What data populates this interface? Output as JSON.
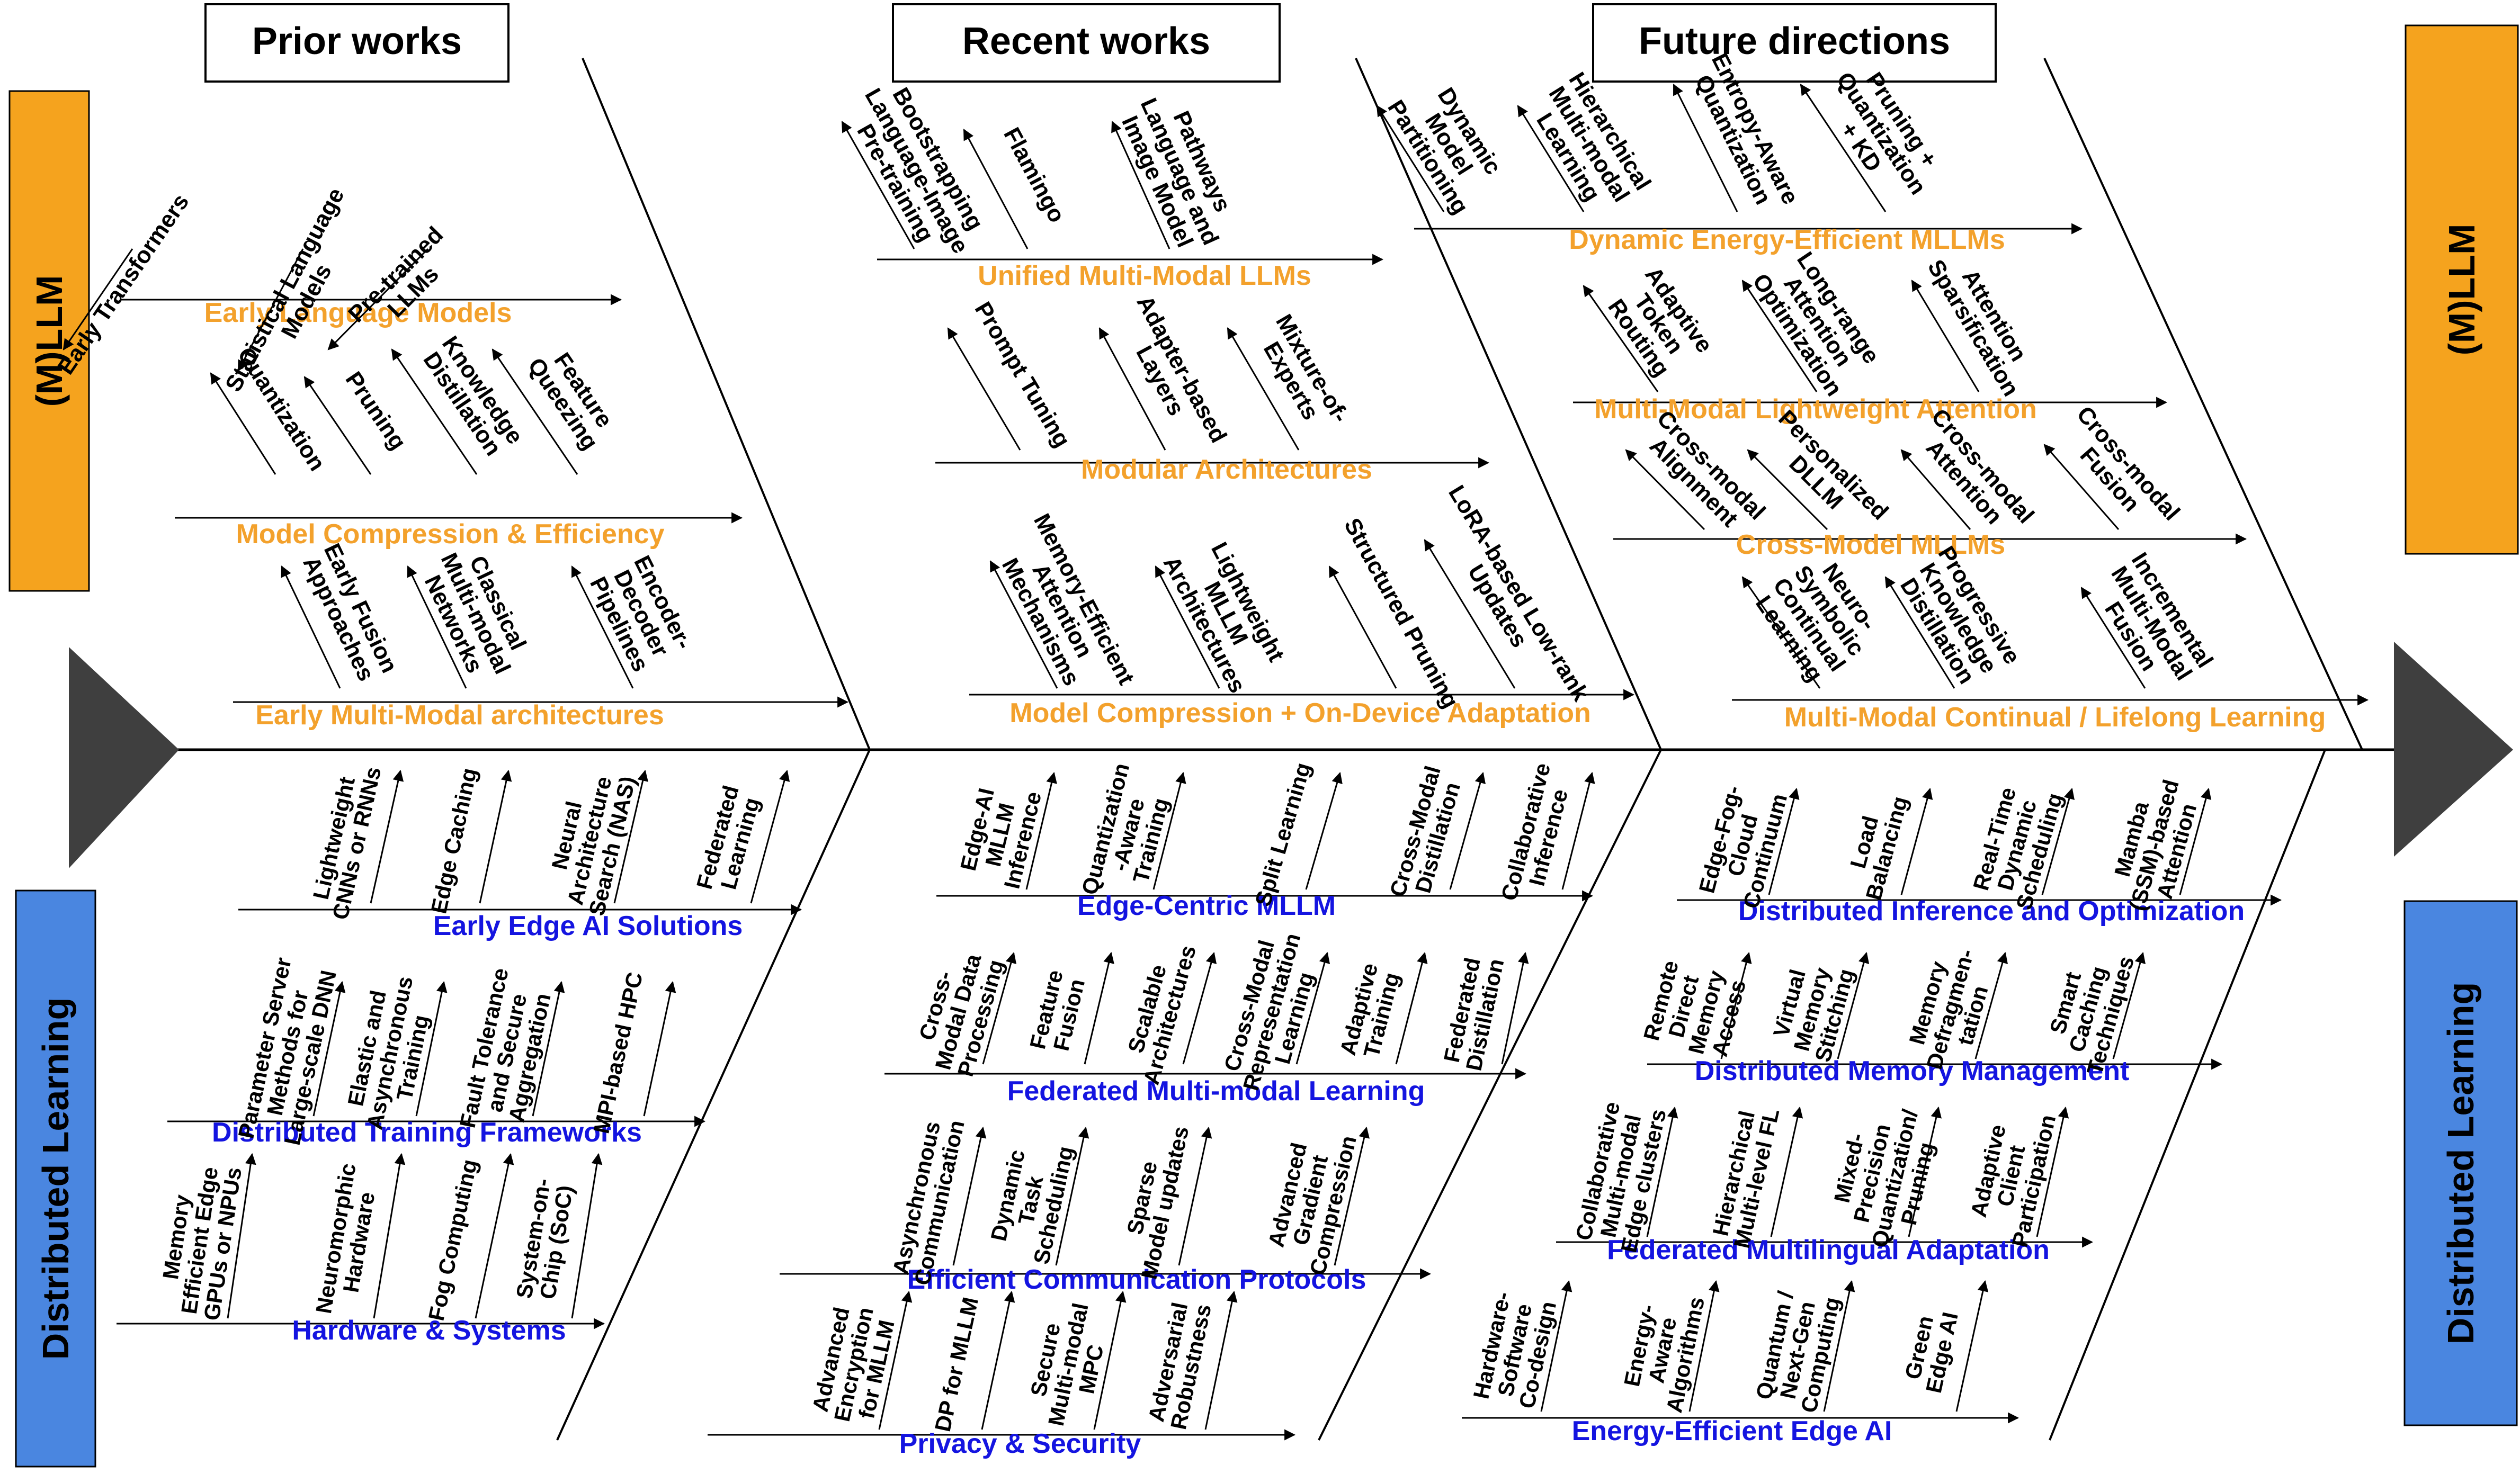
{
  "colors": {
    "orange": "#F5A31E",
    "orange_text": "#F3A12C",
    "blue": "#4A86E0",
    "blue_text": "#1414E0",
    "dark": "#3F3F3F",
    "line": "#000000"
  },
  "headers": {
    "prior": "Prior works",
    "recent": "Recent works",
    "future": "Future directions"
  },
  "side_labels": {
    "mllm": "(M)LLM",
    "distributed": "Distributed Learning"
  },
  "top_branches": [
    {
      "title": "Early Language Models",
      "items": [
        "Early Transformers",
        "Statistical Language\nModels",
        "Pre-trained\nLLMs"
      ]
    },
    {
      "title": "Model Compression & Efficiency",
      "items": [
        "Quantization",
        "Pruning",
        "Knowledge\nDistillation",
        "Feature\nQueezing"
      ]
    },
    {
      "title": "Early  Multi-Modal architectures",
      "items": [
        "Early Fusion\nApproaches",
        "Classical\nMulti-modal\nNetworks",
        "Encoder-\nDecoder\nPipelines"
      ]
    },
    {
      "title": "Unified Multi-Modal LLMs",
      "items": [
        "Bootstrapping\nLanguage-Image\nPre-training",
        "Flamingo",
        "Pathways\nLanguage and\nImage Model"
      ]
    },
    {
      "title": "Modular Architectures",
      "items": [
        "Prompt Tuning",
        "Adapter-based\nLayers",
        "Mixture-of-\nExperts"
      ]
    },
    {
      "title": "Model Compression + On-Device Adaptation",
      "items": [
        "Memory-Efficient\nAttention\nMechanisms",
        "Lightweight\nMLLM\nArchitectures",
        "Structured Pruning",
        "LoRA-based Low-rank\nUpdates"
      ]
    },
    {
      "title": "Dynamic Energy-Efficient MLLMs",
      "items": [
        "Dynamic\nModel\nPartitioning",
        "Hierarchical\nMulti-modal\nLearning",
        "Entropy-Aware\nQuantization",
        "Pruning +\nQuantization\n+ KD"
      ]
    },
    {
      "title": "Multi-Modal Lightweight Attention",
      "items": [
        "Adaptive\nToken\nRouting",
        "Long-range\nAttention\nOptimization",
        "Attention\nSparsification"
      ]
    },
    {
      "title": "Cross-Model MLLMs",
      "items": [
        "Cross-modal\nAlignment",
        "Personalized\nDLLM",
        "Cross-modal\nAttention",
        "Cross-modal\nFusion"
      ]
    },
    {
      "title": "Multi-Modal Continual / Lifelong Learning",
      "items": [
        "Neuro-\nSymbolic\nContinual\nLearning",
        "Progressive\nKnowledge\nDistillation",
        "Incremental\nMulti-Modal\nFusion"
      ]
    }
  ],
  "bottom_branches": [
    {
      "title": "Early Edge AI Solutions",
      "items": [
        "Lightweight\nCNNs or RNNs",
        "Edge Caching",
        "Neural\nArchitecture\nSearch (NAS)",
        "Federated\nLearning"
      ]
    },
    {
      "title": "Distributed Training Frameworks",
      "items": [
        "Parameter Server\nMethods for\nLarge-scale DNN",
        "Elastic and\nAsynchronous\nTraining",
        "Fault Tolerance\nand Secure\nAggregation",
        "MPI-based HPC"
      ]
    },
    {
      "title": "Hardware & Systems",
      "items": [
        "Memory\nEfficient Edge\nGPUs or NPUs",
        "Neuromorphic\nHardware",
        "Fog Computing",
        "System-on-\nChip (SoC)"
      ]
    },
    {
      "title": "Edge-Centric MLLM",
      "items": [
        "Edge-AI\nMLLM\nInference",
        "Quantization\n-Aware\nTraining",
        "Split Learning",
        "Cross-Modal\nDistillation",
        "Collaborative\nInference"
      ]
    },
    {
      "title": "Federated Multi-modal Learning",
      "items": [
        "Cross-\nModal Data\nProcessing",
        "Feature\nFusion",
        "Scalable\nArchitectures",
        "Cross-Modal\nRepresentation\nLearning",
        "Adaptive\nTraining",
        "Federated\nDistillation"
      ]
    },
    {
      "title": "Efficient Communication Protocols",
      "items": [
        "Asynchronous\nCommunication",
        "Dynamic\nTask\nScheduling",
        "Sparse\nModel updates",
        "Advanced\nGradient\nCompression"
      ]
    },
    {
      "title": "Privacy & Security",
      "items": [
        "Advanced\nEncryption\nfor MLLM",
        "DP for MLLM",
        "Secure\nMulti-modal\nMPC",
        "Adversarial\nRobustness"
      ]
    },
    {
      "title": "Distributed Inference and Optimization",
      "items": [
        "Edge-Fog-\nCloud\nContinuum",
        "Load\nBalancing",
        "Real-Time\nDynamic\nScheduling",
        "Mamba\n(SSM)-based\nAttention"
      ]
    },
    {
      "title": "Distributed Memory Management",
      "items": [
        "Remote\nDirect\nMemory\nAccess",
        "Virtual\nMemory\nStitching",
        "Memory\nDefragmen-\ntation",
        "Smart\nCaching\nTechniques"
      ]
    },
    {
      "title": "Federated Multilingual Adaptation",
      "items": [
        "Collaborative\nMulti-modal\nEdge clusters",
        "Hierarchical\nMulti-level FL",
        "Mixed-\nPrecision\nQuantization/\nPruning",
        "Adaptive\nClient\nParticipation"
      ]
    },
    {
      "title": "Energy-Efficient Edge AI",
      "items": [
        "Hardware-\nSoftware\nCo-design",
        "Energy-\nAware\nAlgorithms",
        "Quantum /\nNext-Gen\nComputing",
        "Green\nEdge AI"
      ]
    }
  ]
}
